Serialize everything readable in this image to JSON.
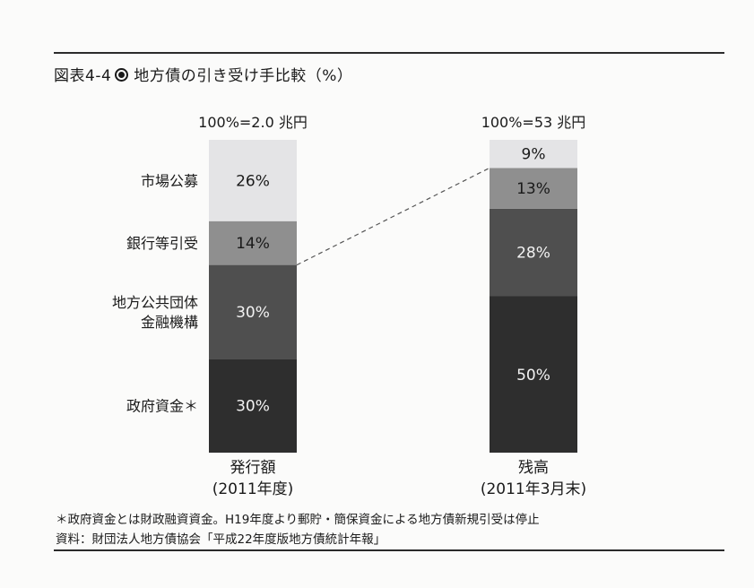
{
  "figure": {
    "title_prefix": "図表4-4",
    "title_text": "地方債の引き受け手比較（%）"
  },
  "chart_data": {
    "type": "bar",
    "stacked": true,
    "percent": true,
    "categories": [
      {
        "line1": "発行額",
        "line2": "(2011年度)",
        "total": "100%=2.0 兆円"
      },
      {
        "line1": "残高",
        "line2": "(2011年3月末)",
        "total": "100%=53 兆円"
      }
    ],
    "series": [
      {
        "name": "政府資金＊",
        "name_lines": [
          "政府資金＊"
        ],
        "values": [
          30,
          50
        ],
        "labels": [
          "30%",
          "50%"
        ],
        "color": "#2e2e2e"
      },
      {
        "name": "地方公共団体金融機構",
        "name_lines": [
          "地方公共団体",
          "金融機構"
        ],
        "values": [
          30,
          28
        ],
        "labels": [
          "30%",
          "28%"
        ],
        "color": "#4f4f4f"
      },
      {
        "name": "銀行等引受",
        "name_lines": [
          "銀行等引受"
        ],
        "values": [
          14,
          13
        ],
        "labels": [
          "14%",
          "13%"
        ],
        "color": "#8f8f8f"
      },
      {
        "name": "市場公募",
        "name_lines": [
          "市場公募"
        ],
        "values": [
          26,
          9
        ],
        "labels": [
          "26%",
          "9%"
        ],
        "color": "#e4e4e6"
      }
    ],
    "ylim": [
      0,
      100
    ],
    "grid": false
  },
  "notes": [
    "＊政府資金とは財政融資資金。H19年度より郵貯・簡保資金による地方債新規引受は停止",
    "資料：財団法人地方債協会「平成22年度版地方債統計年報」"
  ]
}
